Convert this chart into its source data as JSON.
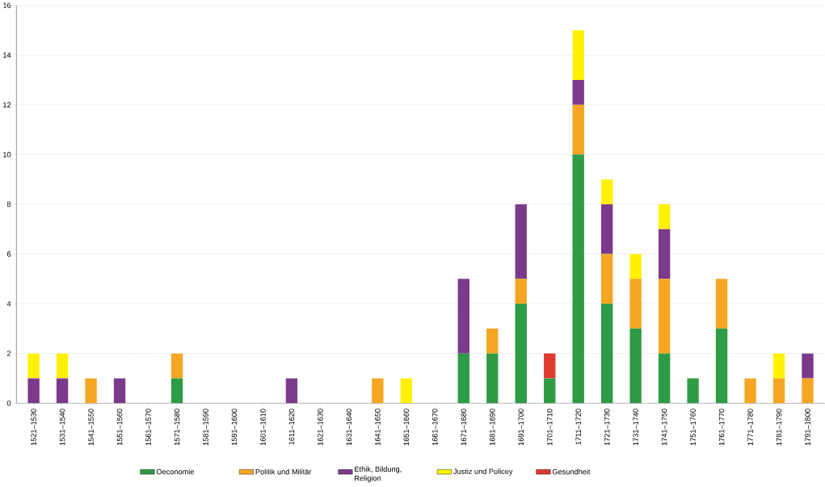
{
  "chart_data": {
    "type": "bar",
    "stacked": true,
    "categories": [
      "1521–1530",
      "1531–1540",
      "1541–1550",
      "1551–1560",
      "1561–1570",
      "1571–1580",
      "1581–1590",
      "1591–1600",
      "1601–1610",
      "1611–1620",
      "1621–1630",
      "1631–1640",
      "1641–1650",
      "1651–1660",
      "1661–1670",
      "1671–1680",
      "1681–1690",
      "1691–1700",
      "1701–1710",
      "1711–1720",
      "1721–1730",
      "1731–1740",
      "1741–1750",
      "1751–1760",
      "1761–1770",
      "1771–1780",
      "1781–1790",
      "1791–1800"
    ],
    "series": [
      {
        "name": "Oeconomie",
        "color": "#2e9b46",
        "values": [
          0,
          0,
          0,
          0,
          0,
          1,
          0,
          0,
          0,
          0,
          0,
          0,
          0,
          0,
          0,
          2,
          2,
          4,
          1,
          10,
          4,
          3,
          2,
          1,
          3,
          0,
          0,
          0
        ]
      },
      {
        "name": "Politik und Militär",
        "color": "#f5a623",
        "values": [
          0,
          0,
          1,
          0,
          0,
          1,
          0,
          0,
          0,
          0,
          0,
          0,
          1,
          0,
          0,
          0,
          1,
          1,
          0,
          2,
          2,
          2,
          3,
          0,
          2,
          1,
          1,
          1
        ]
      },
      {
        "name": "Ethik, Bildung, Religion",
        "color": "#7b3a8c",
        "values": [
          1,
          1,
          0,
          1,
          0,
          0,
          0,
          0,
          0,
          1,
          0,
          0,
          0,
          0,
          0,
          3,
          0,
          3,
          0,
          1,
          2,
          0,
          2,
          0,
          0,
          0,
          0,
          1
        ]
      },
      {
        "name": "Justiz und Policey",
        "color": "#fff200",
        "values": [
          1,
          1,
          0,
          0,
          0,
          0,
          0,
          0,
          0,
          0,
          0,
          0,
          0,
          1,
          0,
          0,
          0,
          0,
          0,
          2,
          1,
          1,
          1,
          0,
          0,
          0,
          1,
          0
        ]
      },
      {
        "name": "Gesundheit",
        "color": "#e03a2e",
        "values": [
          0,
          0,
          0,
          0,
          0,
          0,
          0,
          0,
          0,
          0,
          0,
          0,
          0,
          0,
          0,
          0,
          0,
          0,
          1,
          0,
          0,
          0,
          0,
          0,
          0,
          0,
          0,
          0
        ]
      }
    ],
    "ylim": [
      0,
      16
    ],
    "yticks": [
      0,
      2,
      4,
      6,
      8,
      10,
      12,
      14,
      16
    ],
    "grid": "y",
    "legend": "bottom"
  }
}
